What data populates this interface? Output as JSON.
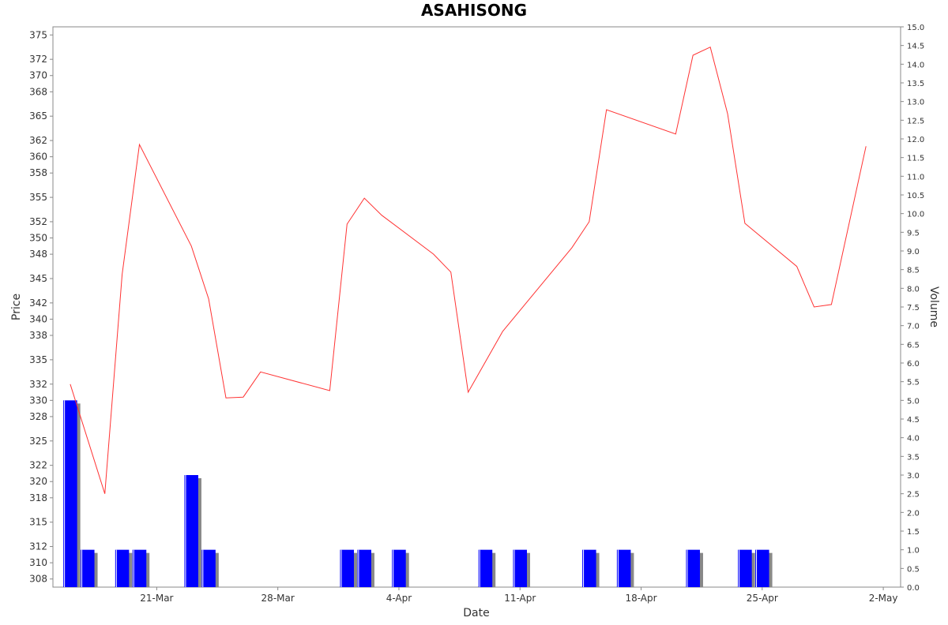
{
  "chart_data": {
    "type": "line",
    "title": "ASAHISONG",
    "xlabel": "Date",
    "ylabel": "Price",
    "y2label": "Volume",
    "grid": false,
    "x_ticks": [
      {
        "date": "2024-03-21",
        "label": "21-Mar"
      },
      {
        "date": "2024-03-28",
        "label": "28-Mar"
      },
      {
        "date": "2024-04-04",
        "label": "4-Apr"
      },
      {
        "date": "2024-04-11",
        "label": "11-Apr"
      },
      {
        "date": "2024-04-18",
        "label": "18-Apr"
      },
      {
        "date": "2024-04-25",
        "label": "25-Apr"
      },
      {
        "date": "2024-05-02",
        "label": "2-May"
      }
    ],
    "xlim": [
      "2024-03-15",
      "2024-05-03"
    ],
    "ylim": [
      307,
      376
    ],
    "y_ticks": [
      "308",
      "310",
      "312",
      "315",
      "318",
      "320",
      "322",
      "325",
      "328",
      "330",
      "332",
      "335",
      "338",
      "340",
      "342",
      "345",
      "348",
      "350",
      "352",
      "355",
      "358",
      "360",
      "362",
      "365",
      "368",
      "370",
      "372",
      "375"
    ],
    "y2lim": [
      0,
      15
    ],
    "y2_ticks": [
      "0.0",
      "0.5",
      "1.0",
      "1.5",
      "2.0",
      "2.5",
      "3.0",
      "3.5",
      "4.0",
      "4.5",
      "5.0",
      "5.5",
      "6.0",
      "6.5",
      "7.0",
      "7.5",
      "8.0",
      "8.5",
      "9.0",
      "9.5",
      "10.0",
      "10.5",
      "11.0",
      "11.5",
      "12.0",
      "12.5",
      "13.0",
      "13.5",
      "14.0",
      "14.5",
      "15.0"
    ],
    "series": [
      {
        "kind": "line",
        "color": "#ff3333",
        "points": [
          [
            "2024-03-16",
            332.0
          ],
          [
            "2024-03-18",
            318.5
          ],
          [
            "2024-03-19",
            345.5
          ],
          [
            "2024-03-20",
            361.5
          ],
          [
            "2024-03-23",
            349.0
          ],
          [
            "2024-03-24",
            342.5
          ],
          [
            "2024-03-25",
            330.3
          ],
          [
            "2024-03-26",
            330.4
          ],
          [
            "2024-03-27",
            333.5
          ],
          [
            "2024-03-31",
            331.2
          ],
          [
            "2024-04-01",
            351.7
          ],
          [
            "2024-04-02",
            354.9
          ],
          [
            "2024-04-03",
            352.8
          ],
          [
            "2024-04-06",
            348.0
          ],
          [
            "2024-04-07",
            345.8
          ],
          [
            "2024-04-08",
            331.0
          ],
          [
            "2024-04-10",
            338.5
          ],
          [
            "2024-04-14",
            348.8
          ],
          [
            "2024-04-15",
            352.0
          ],
          [
            "2024-04-16",
            365.8
          ],
          [
            "2024-04-20",
            362.8
          ],
          [
            "2024-04-21",
            372.5
          ],
          [
            "2024-04-22",
            373.5
          ],
          [
            "2024-04-23",
            365.3
          ],
          [
            "2024-04-24",
            351.8
          ],
          [
            "2024-04-27",
            346.5
          ],
          [
            "2024-04-28",
            341.5
          ],
          [
            "2024-04-29",
            341.8
          ],
          [
            "2024-05-01",
            361.3
          ]
        ]
      },
      {
        "kind": "bar",
        "axis": "right",
        "color": "#0000ff",
        "points": [
          [
            "2024-03-16",
            5
          ],
          [
            "2024-03-17",
            1
          ],
          [
            "2024-03-19",
            1
          ],
          [
            "2024-03-20",
            1
          ],
          [
            "2024-03-23",
            3
          ],
          [
            "2024-03-24",
            1
          ],
          [
            "2024-04-01",
            1
          ],
          [
            "2024-04-02",
            1
          ],
          [
            "2024-04-04",
            1
          ],
          [
            "2024-04-09",
            1
          ],
          [
            "2024-04-11",
            1
          ],
          [
            "2024-04-15",
            1
          ],
          [
            "2024-04-17",
            1
          ],
          [
            "2024-04-21",
            1
          ],
          [
            "2024-04-24",
            1
          ],
          [
            "2024-04-25",
            1
          ]
        ]
      }
    ]
  }
}
